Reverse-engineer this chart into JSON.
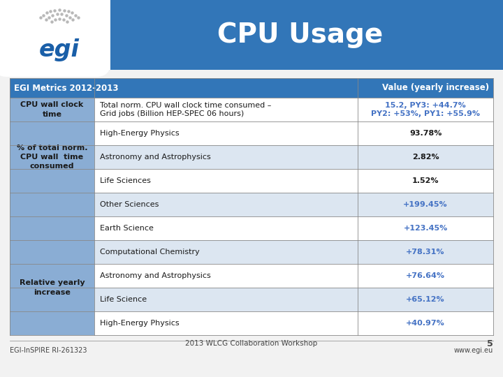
{
  "title": "CPU Usage",
  "header_bg": "#3276b8",
  "header_col1": "EGI Metrics 2012-2013",
  "header_col3": "Value (yearly increase)",
  "col1_bg": "#8aadd4",
  "alt_row_bg": "#c5d5e8",
  "white_row_bg": "#ffffff",
  "slide_bg": "#f2f2f2",
  "rows": [
    {
      "col1": "CPU wall clock\ntime",
      "col2": "Total norm. CPU wall clock time consumed –\nGrid jobs (Billion HEP-SPEC 06 hours)",
      "col3": "15.2, PY3: +44.7%\nPY2: +53%, PY1: +55.9%",
      "col1_bold": true,
      "col3_color": "#4472c4",
      "row_bg": "#ffffff",
      "row_span": 1
    },
    {
      "col1": "% of total norm.\nCPU wall  time\nconsumed",
      "col2": "High-Energy Physics",
      "col3": "93.78%",
      "col1_bold": true,
      "col3_color": "#1a1a1a",
      "row_bg": "#ffffff",
      "row_span": 1
    },
    {
      "col1": "",
      "col2": "Astronomy and Astrophysics",
      "col3": "2.82%",
      "col1_bold": false,
      "col3_color": "#1a1a1a",
      "row_bg": "#dce6f1",
      "row_span": 1
    },
    {
      "col1": "",
      "col2": "Life Sciences",
      "col3": "1.52%",
      "col1_bold": false,
      "col3_color": "#1a1a1a",
      "row_bg": "#ffffff",
      "row_span": 1
    },
    {
      "col1": "",
      "col2": "Other Sciences",
      "col3": "+199.45%",
      "col1_bold": false,
      "col3_color": "#4472c4",
      "row_bg": "#dce6f1",
      "row_span": 1
    },
    {
      "col1": "",
      "col2": "Earth Science",
      "col3": "+123.45%",
      "col1_bold": false,
      "col3_color": "#4472c4",
      "row_bg": "#ffffff",
      "row_span": 1
    },
    {
      "col1": "Relative yearly\nincrease",
      "col2": "Computational Chemistry",
      "col3": "+78.31%",
      "col1_bold": true,
      "col3_color": "#4472c4",
      "row_bg": "#dce6f1",
      "row_span": 1
    },
    {
      "col1": "",
      "col2": "Astronomy and Astrophysics",
      "col3": "+76.64%",
      "col1_bold": false,
      "col3_color": "#4472c4",
      "row_bg": "#ffffff",
      "row_span": 1
    },
    {
      "col1": "",
      "col2": "Life Science",
      "col3": "+65.12%",
      "col1_bold": false,
      "col3_color": "#4472c4",
      "row_bg": "#dce6f1",
      "row_span": 1
    },
    {
      "col1": "",
      "col2": "High-Energy Physics",
      "col3": "+40.97%",
      "col1_bold": false,
      "col3_color": "#4472c4",
      "row_bg": "#ffffff",
      "row_span": 1
    }
  ],
  "col1_merged": [
    {
      "text": "CPU wall clock\ntime",
      "bold": true,
      "start": 0,
      "end": 0
    },
    {
      "text": "% of total norm.\nCPU wall  time\nconsumed",
      "bold": true,
      "start": 1,
      "end": 3
    },
    {
      "text": "Relative yearly\nincrease",
      "bold": true,
      "start": 6,
      "end": 9
    }
  ],
  "footer_text": "2013 WLCG Collaboration Workshop",
  "footer_left": "EGI-InSPIRE RI-261323",
  "footer_right": "www.egi.eu",
  "footer_page": "5"
}
